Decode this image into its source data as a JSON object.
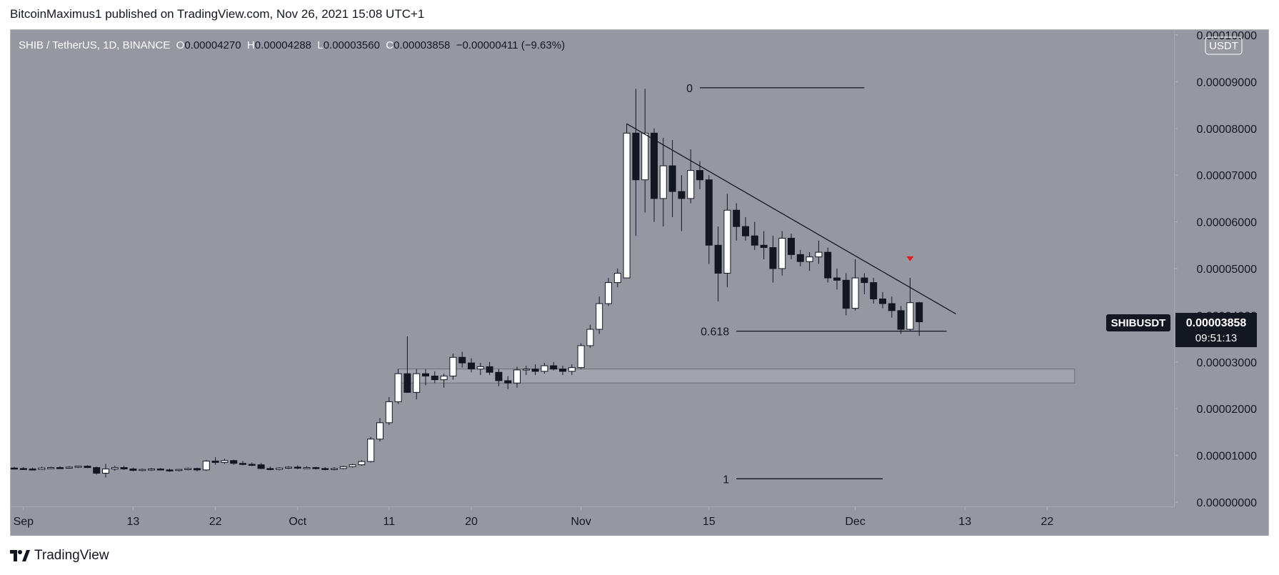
{
  "header": {
    "publisher_line": "BitcoinMaximus1 published on TradingView.com, Nov 26, 2021 15:08 UTC+1"
  },
  "footer": {
    "brand": "TradingView"
  },
  "legend": {
    "symbol": "SHIB / TetherUS, 1D, BINANCE",
    "o_label": "O",
    "o_value": "0.00004270",
    "h_label": "H",
    "h_value": "0.00004288",
    "l_label": "L",
    "l_value": "0.00003560",
    "c_label": "C",
    "c_value": "0.00003858",
    "change": "−0.00000411 (−9.63%)"
  },
  "currency_badge": "USDT",
  "price_tag": {
    "symbol": "SHIBUSDT",
    "price": "0.00003858",
    "countdown": "09:51:13"
  },
  "colors": {
    "plot_bg": "#9598a1",
    "bull": "#ffffff",
    "bear": "#131722",
    "line": "#131722",
    "marker": "#e01e1e",
    "axis_text": "#131722"
  },
  "chart_data": {
    "type": "candlestick",
    "title": "SHIB / TetherUS, 1D, BINANCE",
    "ylim": [
      0.0,
      0.0001
    ],
    "y_ticks": [
      "0.00000000",
      "0.00001000",
      "0.00002000",
      "0.00003000",
      "0.00004000",
      "0.00005000",
      "0.00006000",
      "0.00007000",
      "0.00008000",
      "0.00009000",
      "0.00010000"
    ],
    "x_ticks": [
      {
        "date": "2021-09-01",
        "label": "Sep"
      },
      {
        "date": "2021-09-13",
        "label": "13"
      },
      {
        "date": "2021-09-22",
        "label": "22"
      },
      {
        "date": "2021-10-01",
        "label": "Oct"
      },
      {
        "date": "2021-10-11",
        "label": "11"
      },
      {
        "date": "2021-10-20",
        "label": "20"
      },
      {
        "date": "2021-11-01",
        "label": "Nov"
      },
      {
        "date": "2021-11-15",
        "label": "15"
      },
      {
        "date": "2021-12-01",
        "label": "Dec"
      },
      {
        "date": "2021-12-13",
        "label": "13"
      },
      {
        "date": "2021-12-22",
        "label": "22"
      }
    ],
    "candles": [
      {
        "date": "2021-08-31",
        "o": 7.3e-06,
        "h": 7.6e-06,
        "l": 7e-06,
        "c": 7.2e-06
      },
      {
        "date": "2021-09-01",
        "o": 7.2e-06,
        "h": 7.5e-06,
        "l": 6.9e-06,
        "c": 7.1e-06
      },
      {
        "date": "2021-09-02",
        "o": 7.1e-06,
        "h": 7.4e-06,
        "l": 6.8e-06,
        "c": 7e-06
      },
      {
        "date": "2021-09-03",
        "o": 7e-06,
        "h": 7.6e-06,
        "l": 6.9e-06,
        "c": 7.3e-06
      },
      {
        "date": "2021-09-04",
        "o": 7.3e-06,
        "h": 7.6e-06,
        "l": 7.1e-06,
        "c": 7.4e-06
      },
      {
        "date": "2021-09-05",
        "o": 7.4e-06,
        "h": 7.7e-06,
        "l": 7.2e-06,
        "c": 7.3e-06
      },
      {
        "date": "2021-09-06",
        "o": 7.3e-06,
        "h": 7.7e-06,
        "l": 7.2e-06,
        "c": 7.5e-06
      },
      {
        "date": "2021-09-07",
        "o": 7.5e-06,
        "h": 7.8e-06,
        "l": 7.3e-06,
        "c": 7.7e-06
      },
      {
        "date": "2021-09-08",
        "o": 7.7e-06,
        "h": 7.9e-06,
        "l": 7.3e-06,
        "c": 7.4e-06
      },
      {
        "date": "2021-09-09",
        "o": 7.4e-06,
        "h": 7.6e-06,
        "l": 5.9e-06,
        "c": 6.2e-06
      },
      {
        "date": "2021-09-10",
        "o": 6.2e-06,
        "h": 8.2e-06,
        "l": 5.3e-06,
        "c": 7.1e-06
      },
      {
        "date": "2021-09-11",
        "o": 7.1e-06,
        "h": 7.8e-06,
        "l": 6.7e-06,
        "c": 7.4e-06
      },
      {
        "date": "2021-09-12",
        "o": 7.4e-06,
        "h": 7.8e-06,
        "l": 6.9e-06,
        "c": 7.1e-06
      },
      {
        "date": "2021-09-13",
        "o": 7.1e-06,
        "h": 7.4e-06,
        "l": 6.6e-06,
        "c": 6.8e-06
      },
      {
        "date": "2021-09-14",
        "o": 6.8e-06,
        "h": 7.2e-06,
        "l": 6.6e-06,
        "c": 7e-06
      },
      {
        "date": "2021-09-15",
        "o": 7e-06,
        "h": 7.3e-06,
        "l": 6.7e-06,
        "c": 7.1e-06
      },
      {
        "date": "2021-09-16",
        "o": 7.1e-06,
        "h": 7.3e-06,
        "l": 6.8e-06,
        "c": 6.9e-06
      },
      {
        "date": "2021-09-17",
        "o": 6.9e-06,
        "h": 7.2e-06,
        "l": 6.5e-06,
        "c": 6.8e-06
      },
      {
        "date": "2021-09-18",
        "o": 6.8e-06,
        "h": 7.1e-06,
        "l": 6.6e-06,
        "c": 7e-06
      },
      {
        "date": "2021-09-19",
        "o": 7e-06,
        "h": 7.4e-06,
        "l": 6.8e-06,
        "c": 7.2e-06
      },
      {
        "date": "2021-09-20",
        "o": 7.2e-06,
        "h": 7.4e-06,
        "l": 6.6e-06,
        "c": 6.9e-06
      },
      {
        "date": "2021-09-21",
        "o": 6.9e-06,
        "h": 9e-06,
        "l": 6.7e-06,
        "c": 8.8e-06
      },
      {
        "date": "2021-09-22",
        "o": 8.8e-06,
        "h": 9.6e-06,
        "l": 8e-06,
        "c": 8.5e-06
      },
      {
        "date": "2021-09-23",
        "o": 8.5e-06,
        "h": 9.3e-06,
        "l": 8.2e-06,
        "c": 8.9e-06
      },
      {
        "date": "2021-09-24",
        "o": 8.9e-06,
        "h": 9.1e-06,
        "l": 8e-06,
        "c": 8.3e-06
      },
      {
        "date": "2021-09-25",
        "o": 8.3e-06,
        "h": 8.8e-06,
        "l": 7.9e-06,
        "c": 8.1e-06
      },
      {
        "date": "2021-09-26",
        "o": 8.1e-06,
        "h": 8.5e-06,
        "l": 7.7e-06,
        "c": 8e-06
      },
      {
        "date": "2021-09-27",
        "o": 8e-06,
        "h": 8.4e-06,
        "l": 7.1e-06,
        "c": 7.2e-06
      },
      {
        "date": "2021-09-28",
        "o": 7.2e-06,
        "h": 7.6e-06,
        "l": 6.8e-06,
        "c": 7e-06
      },
      {
        "date": "2021-09-29",
        "o": 7e-06,
        "h": 7.5e-06,
        "l": 6.8e-06,
        "c": 7.3e-06
      },
      {
        "date": "2021-09-30",
        "o": 7.3e-06,
        "h": 7.7e-06,
        "l": 7.1e-06,
        "c": 7.5e-06
      },
      {
        "date": "2021-10-01",
        "o": 7.5e-06,
        "h": 7.9e-06,
        "l": 7e-06,
        "c": 7.3e-06
      },
      {
        "date": "2021-10-02",
        "o": 7.3e-06,
        "h": 7.7e-06,
        "l": 7.1e-06,
        "c": 7.4e-06
      },
      {
        "date": "2021-10-03",
        "o": 7.4e-06,
        "h": 7.6e-06,
        "l": 7e-06,
        "c": 7.2e-06
      },
      {
        "date": "2021-10-04",
        "o": 7.2e-06,
        "h": 7.5e-06,
        "l": 6.8e-06,
        "c": 7e-06
      },
      {
        "date": "2021-10-05",
        "o": 7e-06,
        "h": 7.5e-06,
        "l": 6.8e-06,
        "c": 7.2e-06
      },
      {
        "date": "2021-10-06",
        "o": 7.2e-06,
        "h": 7.8e-06,
        "l": 7e-06,
        "c": 7.6e-06
      },
      {
        "date": "2021-10-07",
        "o": 7.6e-06,
        "h": 8.2e-06,
        "l": 7.4e-06,
        "c": 8e-06
      },
      {
        "date": "2021-10-08",
        "o": 8e-06,
        "h": 9e-06,
        "l": 7.8e-06,
        "c": 8.7e-06
      },
      {
        "date": "2021-10-09",
        "o": 8.7e-06,
        "h": 1.4e-05,
        "l": 8.5e-06,
        "c": 1.35e-05
      },
      {
        "date": "2021-10-10",
        "o": 1.35e-05,
        "h": 1.8e-05,
        "l": 1.3e-05,
        "c": 1.7e-05
      },
      {
        "date": "2021-10-11",
        "o": 1.7e-05,
        "h": 2.25e-05,
        "l": 1.65e-05,
        "c": 2.15e-05
      },
      {
        "date": "2021-10-12",
        "o": 2.15e-05,
        "h": 2.85e-05,
        "l": 2.1e-05,
        "c": 2.75e-05
      },
      {
        "date": "2021-10-13",
        "o": 2.75e-05,
        "h": 3.55e-05,
        "l": 2.35e-05,
        "c": 2.35e-05
      },
      {
        "date": "2021-10-14",
        "o": 2.35e-05,
        "h": 2.85e-05,
        "l": 2.2e-05,
        "c": 2.75e-05
      },
      {
        "date": "2021-10-15",
        "o": 2.75e-05,
        "h": 2.85e-05,
        "l": 2.5e-05,
        "c": 2.7e-05
      },
      {
        "date": "2021-10-16",
        "o": 2.7e-05,
        "h": 2.8e-05,
        "l": 2.55e-05,
        "c": 2.62e-05
      },
      {
        "date": "2021-10-17",
        "o": 2.62e-05,
        "h": 2.75e-05,
        "l": 2.45e-05,
        "c": 2.7e-05
      },
      {
        "date": "2021-10-18",
        "o": 2.7e-05,
        "h": 3.18e-05,
        "l": 2.62e-05,
        "c": 3.1e-05
      },
      {
        "date": "2021-10-19",
        "o": 3.1e-05,
        "h": 3.22e-05,
        "l": 2.88e-05,
        "c": 2.98e-05
      },
      {
        "date": "2021-10-20",
        "o": 2.98e-05,
        "h": 3.08e-05,
        "l": 2.78e-05,
        "c": 2.85e-05
      },
      {
        "date": "2021-10-21",
        "o": 2.85e-05,
        "h": 2.98e-05,
        "l": 2.72e-05,
        "c": 2.9e-05
      },
      {
        "date": "2021-10-22",
        "o": 2.9e-05,
        "h": 3e-05,
        "l": 2.72e-05,
        "c": 2.78e-05
      },
      {
        "date": "2021-10-23",
        "o": 2.78e-05,
        "h": 2.85e-05,
        "l": 2.48e-05,
        "c": 2.6e-05
      },
      {
        "date": "2021-10-24",
        "o": 2.6e-05,
        "h": 2.7e-05,
        "l": 2.42e-05,
        "c": 2.55e-05
      },
      {
        "date": "2021-10-25",
        "o": 2.55e-05,
        "h": 2.9e-05,
        "l": 2.45e-05,
        "c": 2.83e-05
      },
      {
        "date": "2021-10-26",
        "o": 2.83e-05,
        "h": 2.92e-05,
        "l": 2.72e-05,
        "c": 2.85e-05
      },
      {
        "date": "2021-10-27",
        "o": 2.85e-05,
        "h": 2.95e-05,
        "l": 2.72e-05,
        "c": 2.8e-05
      },
      {
        "date": "2021-10-28",
        "o": 2.8e-05,
        "h": 2.98e-05,
        "l": 2.75e-05,
        "c": 2.92e-05
      },
      {
        "date": "2021-10-29",
        "o": 2.92e-05,
        "h": 3e-05,
        "l": 2.82e-05,
        "c": 2.85e-05
      },
      {
        "date": "2021-10-30",
        "o": 2.85e-05,
        "h": 2.92e-05,
        "l": 2.72e-05,
        "c": 2.8e-05
      },
      {
        "date": "2021-10-31",
        "o": 2.8e-05,
        "h": 2.95e-05,
        "l": 2.72e-05,
        "c": 2.88e-05
      },
      {
        "date": "2021-11-01",
        "o": 2.88e-05,
        "h": 3.4e-05,
        "l": 2.85e-05,
        "c": 3.35e-05
      },
      {
        "date": "2021-11-02",
        "o": 3.35e-05,
        "h": 3.8e-05,
        "l": 3.3e-05,
        "c": 3.7e-05
      },
      {
        "date": "2021-11-03",
        "o": 3.7e-05,
        "h": 4.4e-05,
        "l": 3.6e-05,
        "c": 4.25e-05
      },
      {
        "date": "2021-11-04",
        "o": 4.25e-05,
        "h": 4.8e-05,
        "l": 4.2e-05,
        "c": 4.7e-05
      },
      {
        "date": "2021-11-05",
        "o": 4.7e-05,
        "h": 5e-05,
        "l": 4.6e-05,
        "c": 4.9e-05
      },
      {
        "date": "2021-11-06",
        "o": 4.8e-05,
        "h": 8.1e-05,
        "l": 4.8e-05,
        "c": 7.9e-05
      },
      {
        "date": "2021-11-07",
        "o": 7.9e-05,
        "h": 8.85e-05,
        "l": 5.7e-05,
        "c": 6.9e-05
      },
      {
        "date": "2021-11-08",
        "o": 6.9e-05,
        "h": 8.85e-05,
        "l": 6.2e-05,
        "c": 7.9e-05
      },
      {
        "date": "2021-11-09",
        "o": 7.9e-05,
        "h": 8e-05,
        "l": 6e-05,
        "c": 6.5e-05
      },
      {
        "date": "2021-11-10",
        "o": 6.5e-05,
        "h": 7.8e-05,
        "l": 5.9e-05,
        "c": 7.2e-05
      },
      {
        "date": "2021-11-11",
        "o": 7.2e-05,
        "h": 7.75e-05,
        "l": 6.1e-05,
        "c": 6.65e-05
      },
      {
        "date": "2021-11-12",
        "o": 6.65e-05,
        "h": 7e-05,
        "l": 5.8e-05,
        "c": 6.5e-05
      },
      {
        "date": "2021-11-13",
        "o": 6.5e-05,
        "h": 7.55e-05,
        "l": 6.4e-05,
        "c": 7.1e-05
      },
      {
        "date": "2021-11-14",
        "o": 7.1e-05,
        "h": 7.3e-05,
        "l": 6.7e-05,
        "c": 6.9e-05
      },
      {
        "date": "2021-11-15",
        "o": 6.9e-05,
        "h": 7e-05,
        "l": 5.1e-05,
        "c": 5.5e-05
      },
      {
        "date": "2021-11-16",
        "o": 5.5e-05,
        "h": 5.9e-05,
        "l": 4.3e-05,
        "c": 4.9e-05
      },
      {
        "date": "2021-11-17",
        "o": 4.9e-05,
        "h": 6.6e-05,
        "l": 4.6e-05,
        "c": 6.25e-05
      },
      {
        "date": "2021-11-18",
        "o": 6.25e-05,
        "h": 6.4e-05,
        "l": 5.6e-05,
        "c": 5.9e-05
      },
      {
        "date": "2021-11-19",
        "o": 5.9e-05,
        "h": 6.1e-05,
        "l": 5.6e-05,
        "c": 5.7e-05
      },
      {
        "date": "2021-11-20",
        "o": 5.7e-05,
        "h": 6e-05,
        "l": 5.4e-05,
        "c": 5.5e-05
      },
      {
        "date": "2021-11-21",
        "o": 5.5e-05,
        "h": 5.8e-05,
        "l": 5.2e-05,
        "c": 5.45e-05
      },
      {
        "date": "2021-11-22",
        "o": 5.45e-05,
        "h": 5.7e-05,
        "l": 4.7e-05,
        "c": 5e-05
      },
      {
        "date": "2021-11-23",
        "o": 5e-05,
        "h": 5.8e-05,
        "l": 4.85e-05,
        "c": 5.65e-05
      },
      {
        "date": "2021-11-24",
        "o": 5.65e-05,
        "h": 5.75e-05,
        "l": 5.2e-05,
        "c": 5.3e-05
      },
      {
        "date": "2021-11-25",
        "o": 5.3e-05,
        "h": 5.4e-05,
        "l": 5.05e-05,
        "c": 5.15e-05
      },
      {
        "date": "2021-11-26",
        "o": 5.15e-05,
        "h": 5.35e-05,
        "l": 4.95e-05,
        "c": 5.25e-05
      },
      {
        "date": "2021-11-27",
        "o": 5.25e-05,
        "h": 5.6e-05,
        "l": 5.1e-05,
        "c": 5.35e-05
      },
      {
        "date": "2021-11-28",
        "o": 5.35e-05,
        "h": 5.45e-05,
        "l": 4.7e-05,
        "c": 4.8e-05
      },
      {
        "date": "2021-11-29",
        "o": 4.8e-05,
        "h": 5e-05,
        "l": 4.55e-05,
        "c": 4.75e-05
      },
      {
        "date": "2021-11-30",
        "o": 4.75e-05,
        "h": 4.9e-05,
        "l": 4e-05,
        "c": 4.15e-05
      },
      {
        "date": "2021-12-01",
        "o": 4.15e-05,
        "h": 5.2e-05,
        "l": 4.1e-05,
        "c": 4.8e-05
      },
      {
        "date": "2021-12-02",
        "o": 4.8e-05,
        "h": 4.9e-05,
        "l": 4.45e-05,
        "c": 4.7e-05
      },
      {
        "date": "2021-12-03",
        "o": 4.7e-05,
        "h": 4.8e-05,
        "l": 4.25e-05,
        "c": 4.35e-05
      },
      {
        "date": "2021-12-04",
        "o": 4.35e-05,
        "h": 4.5e-05,
        "l": 4.15e-05,
        "c": 4.25e-05
      },
      {
        "date": "2021-12-05",
        "o": 4.25e-05,
        "h": 4.4e-05,
        "l": 3.95e-05,
        "c": 4.1e-05
      },
      {
        "date": "2021-12-06",
        "o": 4.1e-05,
        "h": 4.2e-05,
        "l": 3.6e-05,
        "c": 3.7e-05
      },
      {
        "date": "2021-12-07",
        "o": 3.7e-05,
        "h": 4.8e-05,
        "l": 3.65e-05,
        "c": 4.27e-05
      },
      {
        "date": "2021-12-08",
        "o": 4.27e-05,
        "h": 4.29e-05,
        "l": 3.56e-05,
        "c": 3.86e-05
      }
    ],
    "annotations": {
      "trendline": [
        {
          "date": "2021-11-06",
          "price": 8.1e-05
        },
        {
          "date": "2021-12-12",
          "price": 4.03e-05
        }
      ],
      "fib_levels": [
        {
          "label": "0",
          "price": 8.87e-05,
          "start": "2021-11-14",
          "end": "2021-12-02"
        },
        {
          "label": "0.618",
          "price": 3.66e-05,
          "start": "2021-11-18",
          "end": "2021-12-11"
        },
        {
          "label": "1",
          "price": 5e-06,
          "start": "2021-11-18",
          "end": "2021-12-04"
        }
      ],
      "support_zone": {
        "price_low": 2.55e-05,
        "price_high": 2.85e-05,
        "start": "2021-10-12",
        "end": "2021-12-25"
      },
      "marker": {
        "date": "2021-12-07",
        "price": 5.2e-05
      }
    }
  }
}
